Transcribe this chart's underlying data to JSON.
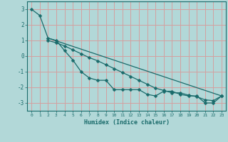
{
  "xlabel": "Humidex (Indice chaleur)",
  "bg_color": "#b2d8d8",
  "grid_color": "#d4a0a0",
  "line_color": "#1a6b6b",
  "xlim": [
    -0.5,
    23.5
  ],
  "ylim": [
    -3.5,
    3.5
  ],
  "xticks": [
    0,
    1,
    2,
    3,
    4,
    5,
    6,
    7,
    8,
    9,
    10,
    11,
    12,
    13,
    14,
    15,
    16,
    17,
    18,
    19,
    20,
    21,
    22,
    23
  ],
  "yticks": [
    -3,
    -2,
    -1,
    0,
    1,
    2,
    3
  ],
  "line1_x": [
    0,
    1,
    2,
    3,
    4,
    5,
    6,
    7,
    8,
    9,
    10,
    11,
    12,
    13,
    14,
    15,
    16,
    17,
    18,
    19,
    20,
    21,
    22,
    23
  ],
  "line1_y": [
    3.0,
    2.6,
    1.15,
    1.0,
    0.35,
    -0.25,
    -1.0,
    -1.4,
    -1.55,
    -1.55,
    -2.15,
    -2.15,
    -2.15,
    -2.15,
    -2.45,
    -2.55,
    -2.25,
    -2.25,
    -2.45,
    -2.55,
    -2.55,
    -3.0,
    -3.0,
    -2.55
  ],
  "line2_x": [
    2,
    23
  ],
  "line2_y": [
    1.15,
    -2.55
  ],
  "line3_x": [
    2,
    3,
    4,
    5,
    6,
    7,
    8,
    9,
    10,
    11,
    12,
    13,
    14,
    15,
    16,
    17,
    18,
    19,
    20,
    21,
    22,
    23
  ],
  "line3_y": [
    1.0,
    0.85,
    0.65,
    0.4,
    0.15,
    -0.1,
    -0.3,
    -0.55,
    -0.8,
    -1.05,
    -1.3,
    -1.55,
    -1.8,
    -2.05,
    -2.2,
    -2.35,
    -2.35,
    -2.5,
    -2.6,
    -2.8,
    -2.85,
    -2.55
  ]
}
